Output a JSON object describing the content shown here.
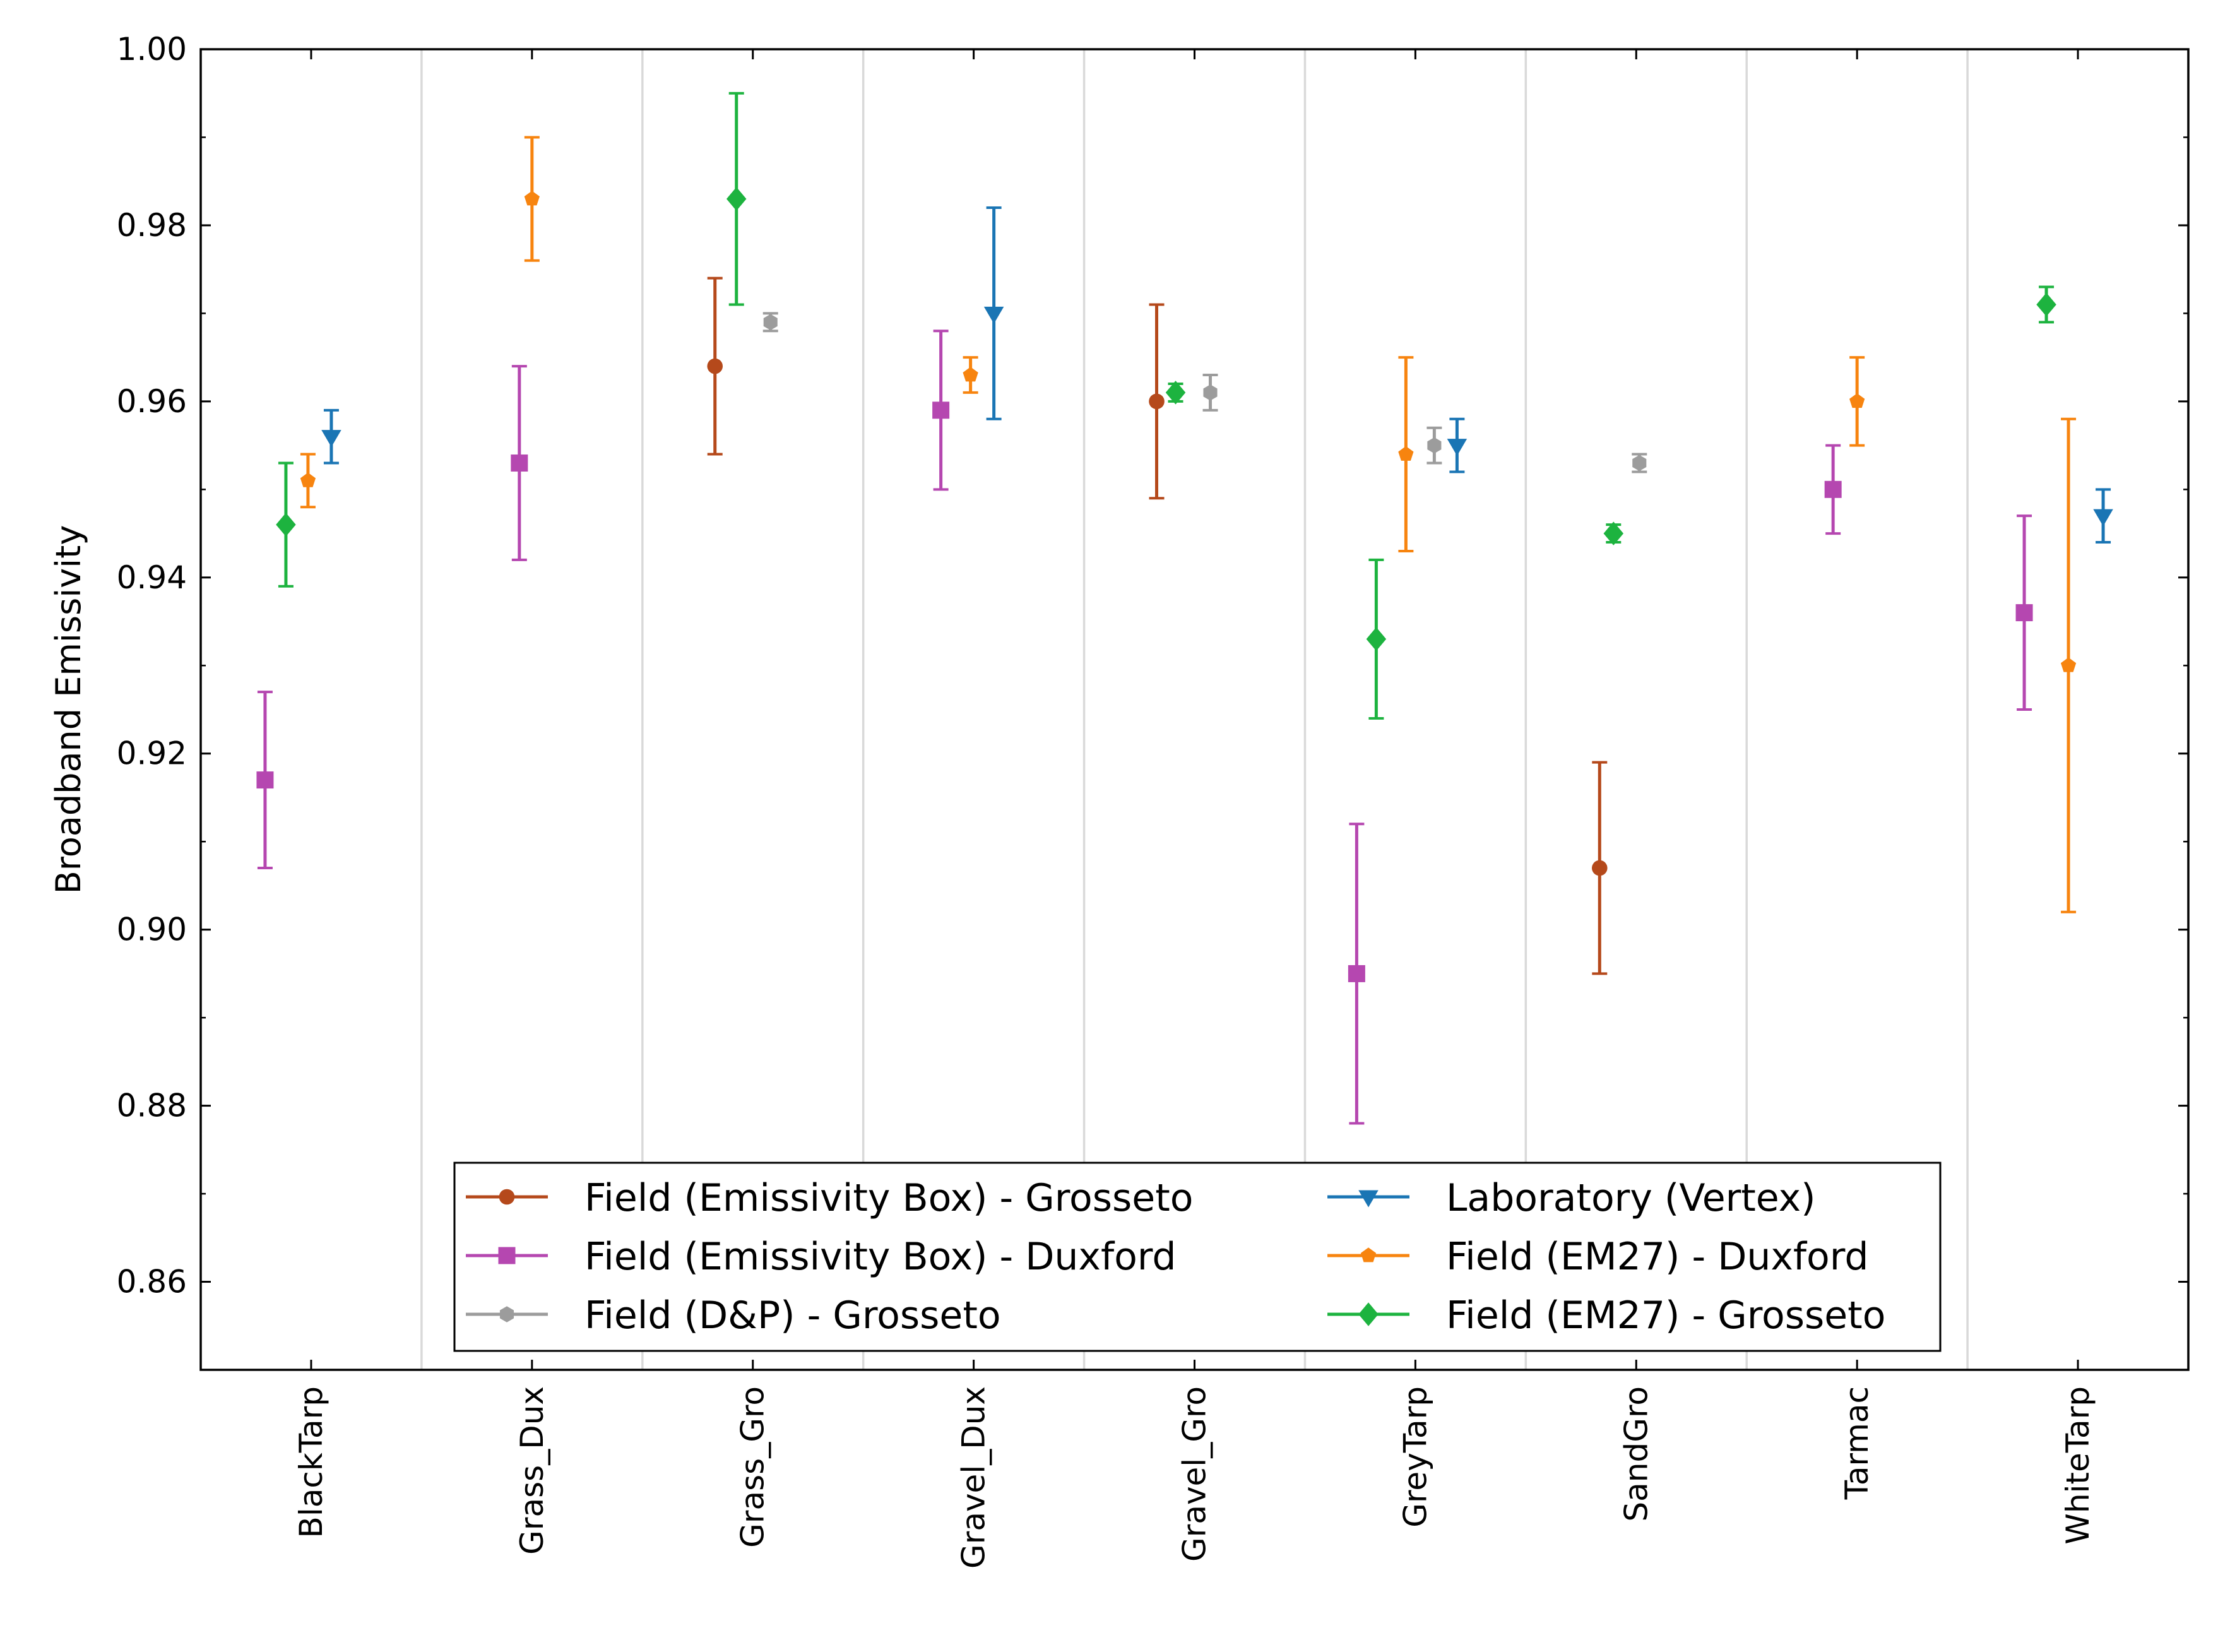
{
  "chart_data": {
    "type": "errorbar",
    "title": "",
    "xlabel": "",
    "ylabel": "Broadband Emissivity",
    "ylim": [
      0.85,
      1.0
    ],
    "yticks": [
      "0.86",
      "0.88",
      "0.90",
      "0.92",
      "0.94",
      "0.96",
      "0.98",
      "1.00"
    ],
    "categories": [
      "BlackTarp",
      "Grass_Dux",
      "Grass_Gro",
      "Gravel_Dux",
      "Gravel_Gro",
      "GreyTarp",
      "SandGro",
      "Tarmac",
      "WhiteTarp"
    ],
    "legend_position": "lower-center",
    "series": [
      {
        "name": "Field (Emissivity Box) - Grosseto",
        "color": "#b5491b",
        "marker": "circle",
        "points": [
          {
            "category": "Grass_Gro",
            "value": 0.964,
            "lower": 0.954,
            "upper": 0.974
          },
          {
            "category": "Gravel_Gro",
            "value": 0.96,
            "lower": 0.949,
            "upper": 0.971
          },
          {
            "category": "SandGro",
            "value": 0.907,
            "lower": 0.895,
            "upper": 0.919
          }
        ]
      },
      {
        "name": "Field (Emissivity Box) - Duxford",
        "color": "#b547b0",
        "marker": "square",
        "points": [
          {
            "category": "BlackTarp",
            "value": 0.917,
            "lower": 0.907,
            "upper": 0.927
          },
          {
            "category": "Grass_Dux",
            "value": 0.953,
            "lower": 0.942,
            "upper": 0.964
          },
          {
            "category": "Gravel_Dux",
            "value": 0.959,
            "lower": 0.95,
            "upper": 0.968
          },
          {
            "category": "GreyTarp",
            "value": 0.895,
            "lower": 0.878,
            "upper": 0.912
          },
          {
            "category": "Tarmac",
            "value": 0.95,
            "lower": 0.945,
            "upper": 0.955
          },
          {
            "category": "WhiteTarp",
            "value": 0.936,
            "lower": 0.925,
            "upper": 0.947
          }
        ]
      },
      {
        "name": "Field (D&P) - Grosseto",
        "color": "#9c9c9c",
        "marker": "hexagon",
        "points": [
          {
            "category": "Grass_Gro",
            "value": 0.969,
            "lower": 0.968,
            "upper": 0.97
          },
          {
            "category": "Gravel_Gro",
            "value": 0.961,
            "lower": 0.959,
            "upper": 0.963
          },
          {
            "category": "GreyTarp",
            "value": 0.955,
            "lower": 0.953,
            "upper": 0.957
          },
          {
            "category": "SandGro",
            "value": 0.953,
            "lower": 0.952,
            "upper": 0.954
          }
        ]
      },
      {
        "name": "Laboratory (Vertex)",
        "color": "#1a75b4",
        "marker": "triangle-down",
        "points": [
          {
            "category": "BlackTarp",
            "value": 0.956,
            "lower": 0.953,
            "upper": 0.959
          },
          {
            "category": "Gravel_Dux",
            "value": 0.97,
            "lower": 0.958,
            "upper": 0.982
          },
          {
            "category": "GreyTarp",
            "value": 0.955,
            "lower": 0.952,
            "upper": 0.958
          },
          {
            "category": "WhiteTarp",
            "value": 0.947,
            "lower": 0.944,
            "upper": 0.95
          }
        ]
      },
      {
        "name": "Field (EM27) - Duxford",
        "color": "#f7840f",
        "marker": "pentagon",
        "points": [
          {
            "category": "BlackTarp",
            "value": 0.951,
            "lower": 0.948,
            "upper": 0.954
          },
          {
            "category": "Grass_Dux",
            "value": 0.983,
            "lower": 0.976,
            "upper": 0.99
          },
          {
            "category": "Gravel_Dux",
            "value": 0.963,
            "lower": 0.961,
            "upper": 0.965
          },
          {
            "category": "GreyTarp",
            "value": 0.954,
            "lower": 0.943,
            "upper": 0.965
          },
          {
            "category": "Tarmac",
            "value": 0.96,
            "lower": 0.955,
            "upper": 0.965
          },
          {
            "category": "WhiteTarp",
            "value": 0.93,
            "lower": 0.902,
            "upper": 0.958
          }
        ]
      },
      {
        "name": "Field (EM27) - Grosseto",
        "color": "#1db33f",
        "marker": "diamond",
        "points": [
          {
            "category": "BlackTarp",
            "value": 0.946,
            "lower": 0.939,
            "upper": 0.953
          },
          {
            "category": "Grass_Gro",
            "value": 0.983,
            "lower": 0.971,
            "upper": 0.995
          },
          {
            "category": "Gravel_Gro",
            "value": 0.961,
            "lower": 0.96,
            "upper": 0.962
          },
          {
            "category": "GreyTarp",
            "value": 0.933,
            "lower": 0.924,
            "upper": 0.942
          },
          {
            "category": "SandGro",
            "value": 0.945,
            "lower": 0.944,
            "upper": 0.946
          },
          {
            "category": "WhiteTarp",
            "value": 0.971,
            "lower": 0.969,
            "upper": 0.973
          }
        ]
      }
    ]
  }
}
